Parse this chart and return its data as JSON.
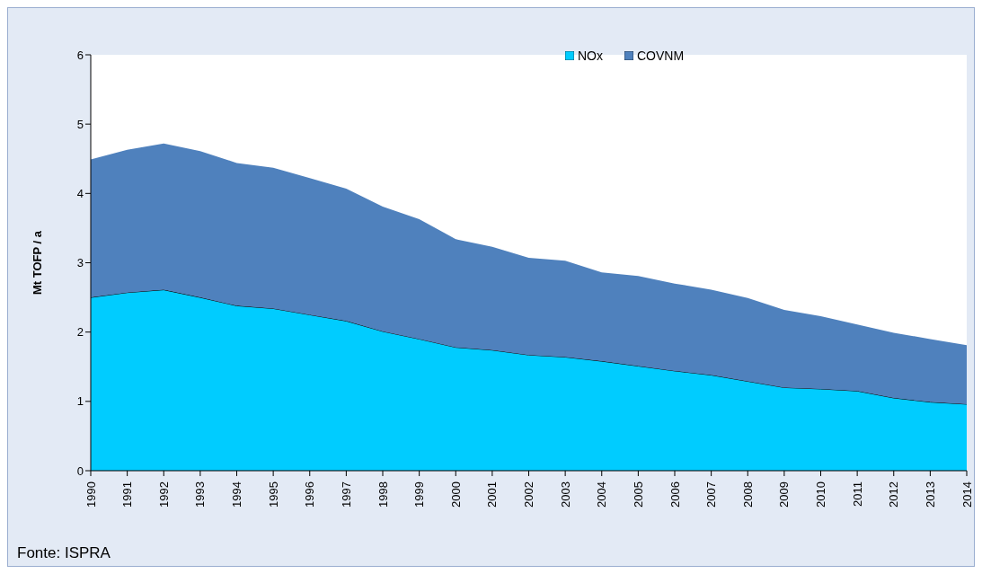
{
  "chart_data": {
    "type": "area",
    "stacked": true,
    "ylabel": "Mt TOFP / a",
    "annotations": [
      "Fonte: ISPRA"
    ],
    "categories": [
      "1990",
      "1991",
      "1992",
      "1993",
      "1994",
      "1995",
      "1996",
      "1997",
      "1998",
      "1999",
      "2000",
      "2001",
      "2002",
      "2003",
      "2004",
      "2005",
      "2006",
      "2007",
      "2008",
      "2009",
      "2010",
      "2011",
      "2012",
      "2013",
      "2014"
    ],
    "series": [
      {
        "name": "NOx",
        "color": "#00ccff",
        "values": [
          2.5,
          2.57,
          2.61,
          2.5,
          2.38,
          2.34,
          2.25,
          2.16,
          2.01,
          1.9,
          1.78,
          1.74,
          1.67,
          1.64,
          1.58,
          1.51,
          1.44,
          1.38,
          1.29,
          1.2,
          1.18,
          1.15,
          1.05,
          0.99,
          0.96
        ]
      },
      {
        "name": "COVNM",
        "color": "#4f81bd",
        "values": [
          1.99,
          2.06,
          2.11,
          2.11,
          2.06,
          2.03,
          1.97,
          1.91,
          1.8,
          1.73,
          1.56,
          1.49,
          1.4,
          1.39,
          1.28,
          1.3,
          1.26,
          1.23,
          1.2,
          1.12,
          1.05,
          0.96,
          0.94,
          0.91,
          0.85
        ]
      }
    ],
    "ylim": [
      0,
      6
    ],
    "yticks": [
      0,
      1,
      2,
      3,
      4,
      5,
      6
    ],
    "grid": false,
    "legend": "top right"
  }
}
